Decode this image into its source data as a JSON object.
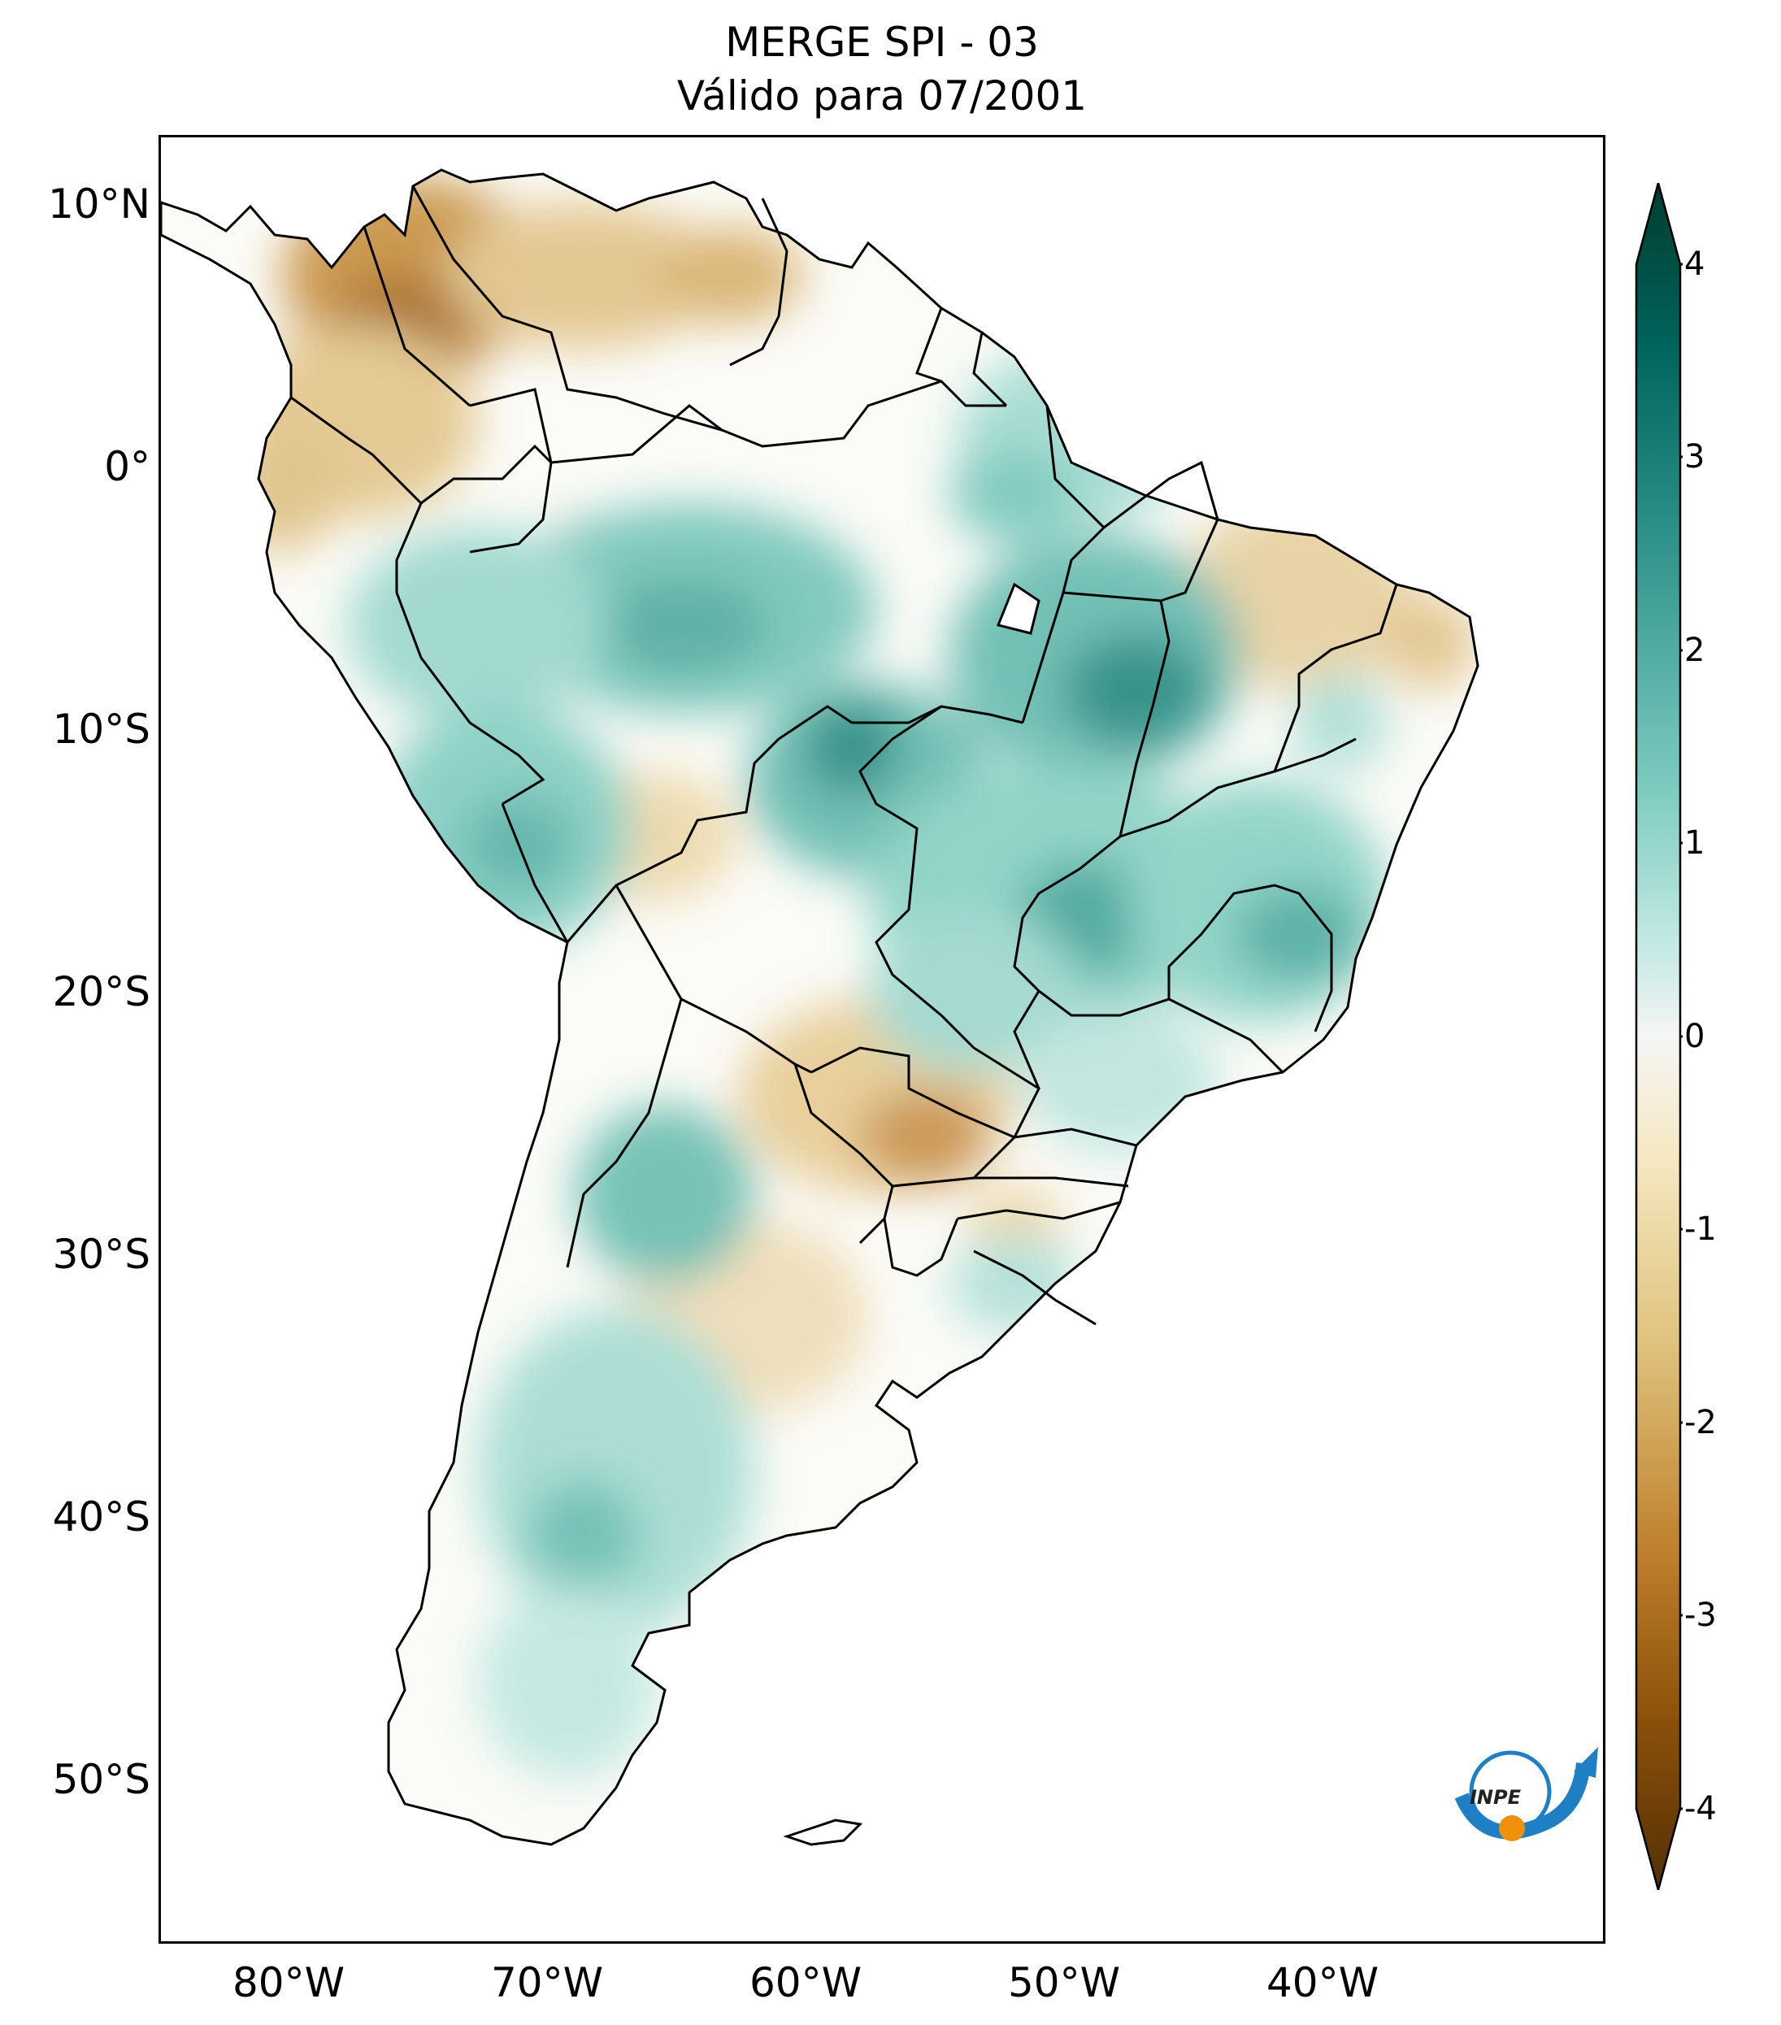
{
  "title": {
    "line1": "MERGE   SPI - 03",
    "line2": "Válido para 07/2001"
  },
  "map": {
    "variable": "SPI - 03",
    "product": "MERGE",
    "valid_date": "07/2001",
    "lon_range_deg": [
      -85,
      -29
    ],
    "lat_range_deg": [
      -56,
      13
    ],
    "lat_ticks": [
      {
        "label": "10°N",
        "value": 10
      },
      {
        "label": "0°",
        "value": 0
      },
      {
        "label": "10°S",
        "value": -10
      },
      {
        "label": "20°S",
        "value": -20
      },
      {
        "label": "30°S",
        "value": -30
      },
      {
        "label": "40°S",
        "value": -40
      },
      {
        "label": "50°S",
        "value": -50
      }
    ],
    "lon_ticks": [
      {
        "label": "80°W",
        "value": -80
      },
      {
        "label": "70°W",
        "value": -70
      },
      {
        "label": "60°W",
        "value": -60
      },
      {
        "label": "50°W",
        "value": -50
      },
      {
        "label": "40°W",
        "value": -40
      }
    ]
  },
  "colorbar": {
    "range": [
      -4,
      4
    ],
    "extend": "both",
    "ticks": [
      "4",
      "3",
      "2",
      "1",
      "0",
      "-1",
      "-2",
      "-3",
      "-4"
    ],
    "colors": [
      "#003c30",
      "#01665e",
      "#35978f",
      "#80cdc1",
      "#c7eae5",
      "#f5f5f5",
      "#f6e8c3",
      "#dfc27d",
      "#bf812d",
      "#8c510a",
      "#543005"
    ]
  },
  "logo": {
    "text": "INPE",
    "icon": "inpe-logo-icon",
    "colors": {
      "blue": "#1f7fc4",
      "orange": "#f0900c"
    }
  }
}
